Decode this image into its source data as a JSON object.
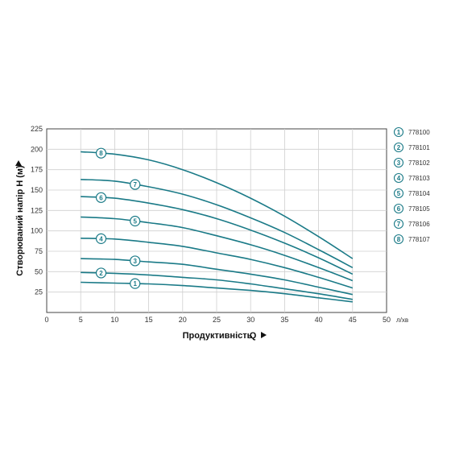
{
  "chart_data": {
    "type": "line",
    "xlabel": "Продуктивність",
    "xsymbol": "Q",
    "xunit": "л/хв",
    "ylabel": "Створюваний напір H (м)",
    "xlim": [
      0,
      50
    ],
    "ylim": [
      0,
      225
    ],
    "xticks": [
      "0",
      "5",
      "10",
      "15",
      "20",
      "25",
      "30",
      "35",
      "40",
      "45",
      "50"
    ],
    "yticks": [
      "25",
      "50",
      "75",
      "100",
      "125",
      "150",
      "175",
      "200",
      "225"
    ],
    "grid": true,
    "legend_position": "right",
    "series": [
      {
        "marker": "1",
        "name": "778100",
        "x": [
          5,
          10,
          15,
          20,
          25,
          30,
          35,
          40,
          45
        ],
        "values": [
          37,
          36,
          35,
          33,
          30,
          27,
          23,
          18,
          13
        ]
      },
      {
        "marker": "2",
        "name": "778101",
        "x": [
          5,
          10,
          15,
          20,
          25,
          30,
          35,
          40,
          45
        ],
        "values": [
          49,
          48,
          46,
          43,
          40,
          35,
          29,
          23,
          16
        ]
      },
      {
        "marker": "3",
        "name": "778102",
        "x": [
          5,
          10,
          15,
          20,
          25,
          30,
          35,
          40,
          45
        ],
        "values": [
          66,
          65,
          62,
          59,
          53,
          47,
          40,
          31,
          22
        ]
      },
      {
        "marker": "4",
        "name": "778103",
        "x": [
          5,
          10,
          15,
          20,
          25,
          30,
          35,
          40,
          45
        ],
        "values": [
          91,
          90,
          86,
          81,
          73,
          65,
          55,
          43,
          30
        ]
      },
      {
        "marker": "5",
        "name": "778104",
        "x": [
          5,
          10,
          15,
          20,
          25,
          30,
          35,
          40,
          45
        ],
        "values": [
          117,
          115,
          110,
          104,
          94,
          83,
          70,
          55,
          39
        ]
      },
      {
        "marker": "6",
        "name": "778105",
        "x": [
          5,
          10,
          15,
          20,
          25,
          30,
          35,
          40,
          45
        ],
        "values": [
          142,
          140,
          134,
          126,
          115,
          101,
          85,
          67,
          47
        ]
      },
      {
        "marker": "7",
        "name": "778106",
        "x": [
          5,
          10,
          15,
          20,
          25,
          30,
          35,
          40,
          45
        ],
        "values": [
          163,
          161,
          154,
          145,
          132,
          116,
          98,
          77,
          55
        ]
      },
      {
        "marker": "8",
        "name": "778107",
        "x": [
          5,
          10,
          15,
          20,
          25,
          30,
          35,
          40,
          45
        ],
        "values": [
          197,
          194,
          187,
          175,
          159,
          140,
          118,
          93,
          66
        ]
      }
    ],
    "line_color": "#1a7a87",
    "grid_color": "#cfcfcf",
    "marker_positions_x": [
      13,
      8,
      13,
      8,
      13,
      8,
      13,
      8
    ]
  }
}
